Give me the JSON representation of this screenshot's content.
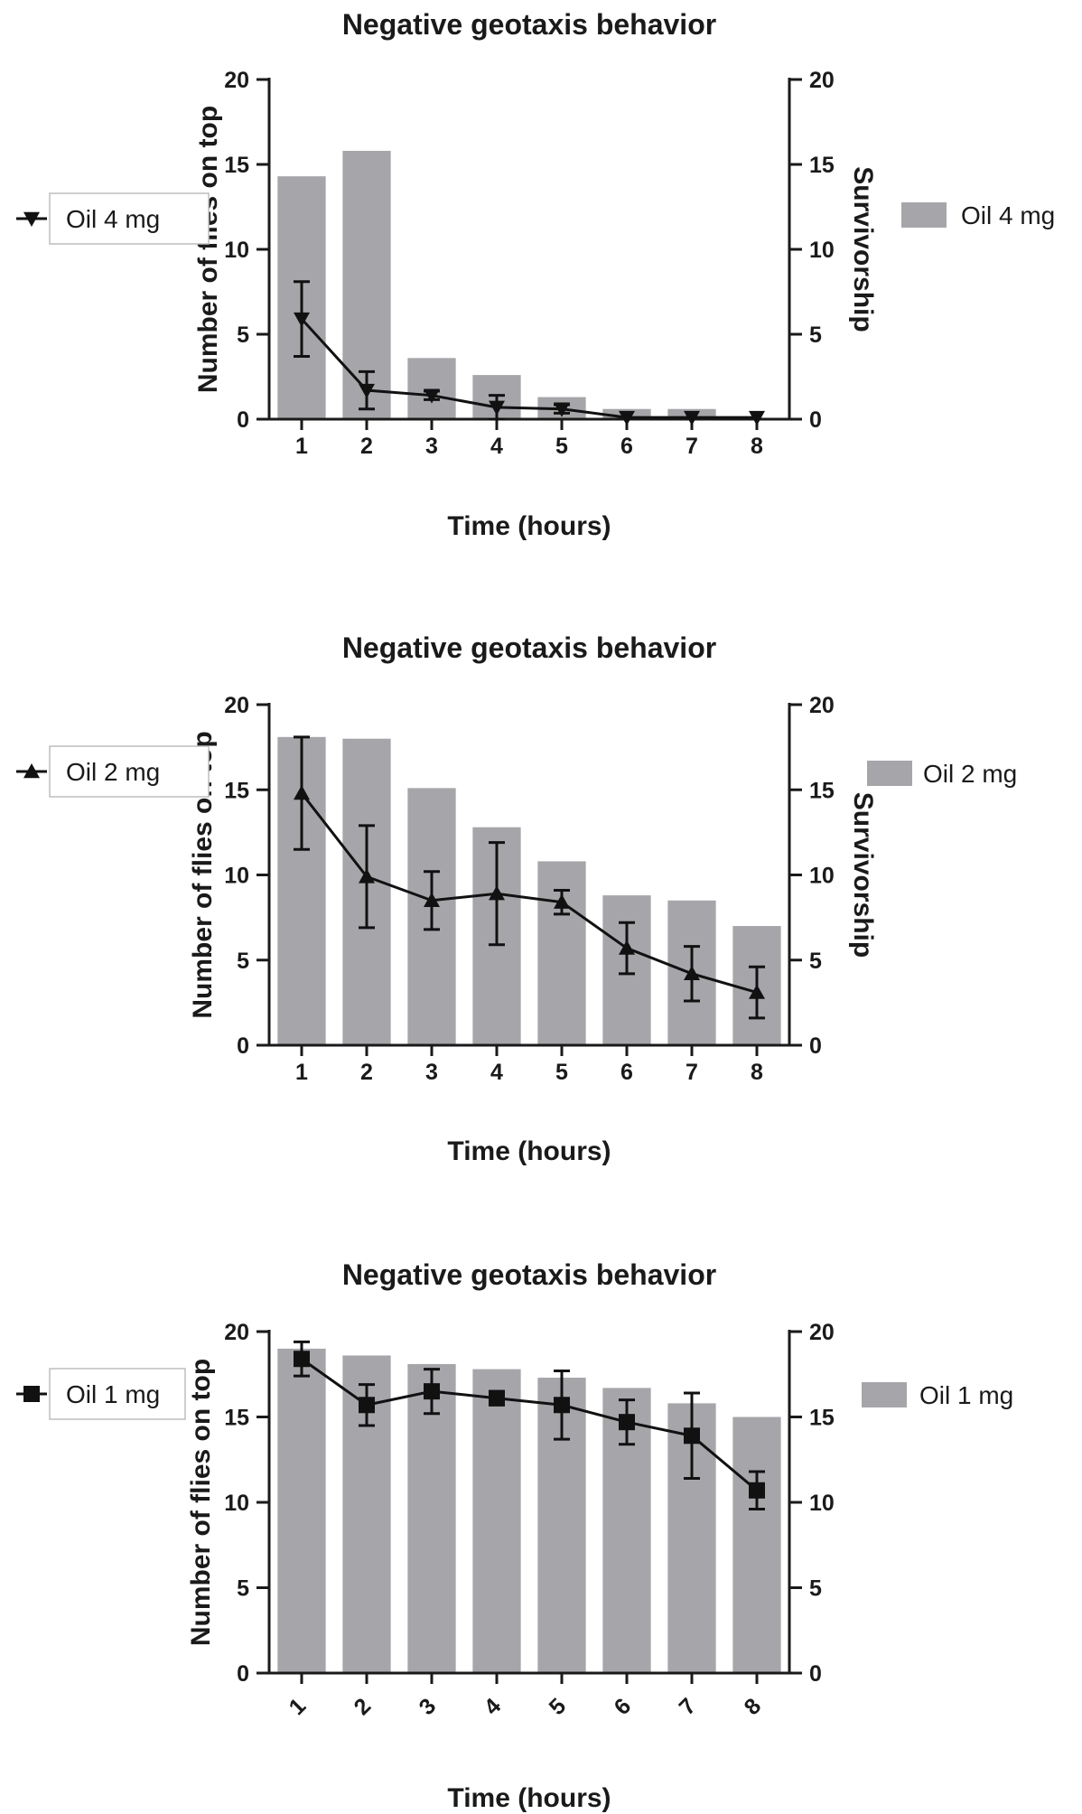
{
  "colors": {
    "bar": "#a6a6aa",
    "line": "#111111",
    "axis": "#1a1a1a",
    "legend_border": "#bdbdbd"
  },
  "chart_data": [
    {
      "type": "bar",
      "title": "Negative geotaxis behavior",
      "xlabel": "Time (hours)",
      "ylabel": "Number of flies on top",
      "y2label": "Survivorship",
      "categories": [
        "1",
        "2",
        "3",
        "4",
        "5",
        "6",
        "7",
        "8"
      ],
      "ylim": [
        0,
        20
      ],
      "yticks": [
        "0",
        "5",
        "10",
        "15",
        "20"
      ],
      "y2lim": [
        0,
        20
      ],
      "y2ticks": [
        "0",
        "5",
        "10",
        "15",
        "20"
      ],
      "bar_series": {
        "name": "Oil 4 mg",
        "values": [
          14.3,
          15.8,
          3.6,
          2.6,
          1.3,
          0.6,
          0.6,
          0
        ]
      },
      "line_series": {
        "name": "Oil 4 mg",
        "marker": "triangle-down",
        "values": [
          5.9,
          1.7,
          1.4,
          0.7,
          0.6,
          0.1,
          0.1,
          0.1
        ],
        "errors": [
          2.2,
          1.1,
          0.25,
          0.7,
          0.25,
          0,
          0,
          0
        ]
      },
      "x_tick_rotation": 0
    },
    {
      "type": "bar",
      "title": "Negative geotaxis behavior",
      "xlabel": "Time (hours)",
      "ylabel": "Number of flies on top",
      "y2label": "Survivorship",
      "categories": [
        "1",
        "2",
        "3",
        "4",
        "5",
        "6",
        "7",
        "8"
      ],
      "ylim": [
        0,
        20
      ],
      "yticks": [
        "0",
        "5",
        "10",
        "15",
        "20"
      ],
      "y2lim": [
        0,
        20
      ],
      "y2ticks": [
        "0",
        "5",
        "10",
        "15",
        "20"
      ],
      "bar_series": {
        "name": "Oil 2 mg",
        "values": [
          18.1,
          18.0,
          15.1,
          12.8,
          10.8,
          8.8,
          8.5,
          7.0
        ]
      },
      "line_series": {
        "name": "Oil 2 mg",
        "marker": "triangle-up",
        "values": [
          14.8,
          9.9,
          8.5,
          8.9,
          8.4,
          5.7,
          4.2,
          3.1
        ],
        "errors": [
          3.3,
          3.0,
          1.7,
          3.0,
          0.7,
          1.5,
          1.6,
          1.5
        ]
      },
      "x_tick_rotation": 0
    },
    {
      "type": "bar",
      "title": "Negative geotaxis behavior",
      "xlabel": "Time (hours)",
      "ylabel": "Number of flies on top",
      "y2label": "",
      "categories": [
        "1",
        "2",
        "3",
        "4",
        "5",
        "6",
        "7",
        "8"
      ],
      "ylim": [
        0,
        20
      ],
      "yticks": [
        "0",
        "5",
        "10",
        "15",
        "20"
      ],
      "y2lim": [
        0,
        20
      ],
      "y2ticks": [
        "0",
        "5",
        "10",
        "15",
        "20"
      ],
      "bar_series": {
        "name": "Oil 1 mg",
        "values": [
          19.0,
          18.6,
          18.1,
          17.8,
          17.3,
          16.7,
          15.8,
          15.0
        ]
      },
      "line_series": {
        "name": "Oil 1 mg",
        "marker": "square",
        "values": [
          18.4,
          15.7,
          16.5,
          16.1,
          15.7,
          14.7,
          13.9,
          10.7
        ],
        "errors": [
          1.0,
          1.2,
          1.3,
          0.4,
          2.0,
          1.3,
          2.5,
          1.1
        ]
      },
      "x_tick_rotation": -45
    }
  ]
}
